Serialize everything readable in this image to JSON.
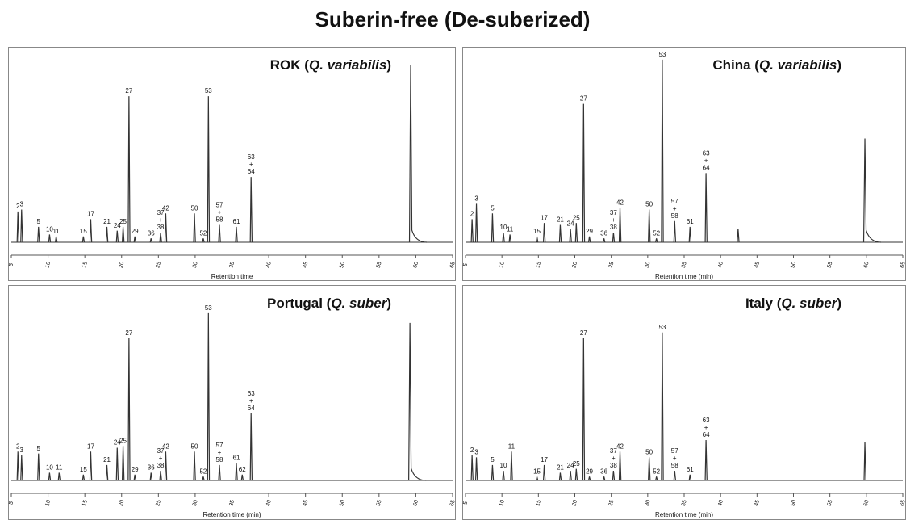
{
  "title": "Suberin-free (De-suberized)",
  "chart_data": [
    {
      "type": "line",
      "title": [
        "ROK  (",
        "Q. variabilis",
        ")"
      ],
      "title_italic": [
        false,
        true,
        false
      ],
      "x_label": "Retention time",
      "xlim": [
        5,
        65
      ],
      "xticks": [
        5,
        10,
        15,
        20,
        25,
        30,
        35,
        40,
        45,
        50,
        55,
        60,
        65
      ],
      "ylim": [
        0,
        100
      ],
      "color": "#333333",
      "x": [
        5.9,
        6.4,
        8.7,
        10.2,
        11.1,
        14.8,
        15.8,
        18.0,
        19.4,
        20.2,
        21.0,
        21.8,
        24.0,
        25.3,
        26.0,
        29.9,
        31.1,
        31.8,
        33.3,
        35.6,
        37.6,
        59.3
      ],
      "values": [
        16,
        17,
        8,
        4,
        3,
        3,
        12,
        8,
        6,
        8,
        76,
        3,
        2,
        5,
        15,
        15,
        2,
        76,
        9,
        8,
        34,
        92
      ],
      "labels": [
        [
          "2"
        ],
        [
          "3"
        ],
        [
          "5"
        ],
        [
          "10"
        ],
        [
          "11"
        ],
        [
          "15"
        ],
        [
          "17"
        ],
        [
          "21"
        ],
        [
          "24"
        ],
        [
          "25"
        ],
        [
          "27"
        ],
        [
          "29"
        ],
        [
          "36"
        ],
        [
          "37",
          "+",
          "38"
        ],
        [
          "42"
        ],
        [
          "50"
        ],
        [
          "52"
        ],
        [
          "53"
        ],
        [
          "57",
          "+",
          "58"
        ],
        [
          "61"
        ],
        [
          "63",
          "+",
          "64"
        ],
        null
      ]
    },
    {
      "type": "line",
      "title": [
        "China (",
        "Q. variabilis",
        ")"
      ],
      "title_italic": [
        false,
        true,
        false
      ],
      "x_label": "Retention time (min)",
      "xlim": [
        5,
        65
      ],
      "xticks": [
        5,
        10,
        15,
        20,
        25,
        30,
        35,
        40,
        45,
        50,
        55,
        60,
        65
      ],
      "ylim": [
        0,
        100
      ],
      "color": "#333333",
      "x": [
        5.9,
        6.5,
        8.7,
        10.2,
        11.1,
        14.8,
        15.8,
        18.0,
        19.4,
        20.2,
        21.2,
        22.0,
        24.0,
        25.3,
        26.2,
        30.2,
        31.2,
        32.0,
        33.7,
        35.8,
        38.0,
        42.4,
        59.8
      ],
      "values": [
        12,
        20,
        15,
        5,
        4,
        3,
        10,
        9,
        7,
        10,
        72,
        3,
        2,
        5,
        18,
        17,
        2,
        95,
        11,
        8,
        36,
        7,
        54
      ],
      "labels": [
        [
          "2"
        ],
        [
          "3"
        ],
        [
          "5"
        ],
        [
          "10"
        ],
        [
          "11"
        ],
        [
          "15"
        ],
        [
          "17"
        ],
        [
          "21"
        ],
        [
          "24"
        ],
        [
          "25"
        ],
        [
          "27"
        ],
        [
          "29"
        ],
        [
          "36"
        ],
        [
          "37",
          "+",
          "38"
        ],
        [
          "42"
        ],
        [
          "50"
        ],
        [
          "52"
        ],
        [
          "53"
        ],
        [
          "57",
          "+",
          "58"
        ],
        [
          "61"
        ],
        [
          "63",
          "+",
          "64"
        ],
        null,
        null
      ]
    },
    {
      "type": "line",
      "title": [
        "Portugal (",
        "Q. suber",
        ")"
      ],
      "title_italic": [
        false,
        true,
        false
      ],
      "x_label": "Retention time (min)",
      "xlim": [
        5,
        65
      ],
      "xticks": [
        5,
        10,
        15,
        20,
        25,
        30,
        35,
        40,
        45,
        50,
        55,
        60,
        65
      ],
      "ylim": [
        0,
        100
      ],
      "color": "#333333",
      "x": [
        5.9,
        6.4,
        8.7,
        10.2,
        11.5,
        14.8,
        15.8,
        18.0,
        19.4,
        20.2,
        21.0,
        21.8,
        24.0,
        25.3,
        26.0,
        29.9,
        31.1,
        31.8,
        33.3,
        35.6,
        36.4,
        37.6,
        59.2
      ],
      "values": [
        15,
        13,
        14,
        4,
        4,
        3,
        15,
        8,
        17,
        18,
        74,
        3,
        4,
        5,
        15,
        15,
        2,
        87,
        8,
        9,
        3,
        35,
        82
      ],
      "labels": [
        [
          "2"
        ],
        [
          "3"
        ],
        [
          "5"
        ],
        [
          "10"
        ],
        [
          "11"
        ],
        [
          "15"
        ],
        [
          "17"
        ],
        [
          "21"
        ],
        [
          "24"
        ],
        [
          "25"
        ],
        [
          "27"
        ],
        [
          "29"
        ],
        [
          "36"
        ],
        [
          "37",
          "+",
          "38"
        ],
        [
          "42"
        ],
        [
          "50"
        ],
        [
          "52"
        ],
        [
          "53"
        ],
        [
          "57",
          "+",
          "58"
        ],
        [
          "61"
        ],
        [
          "62"
        ],
        [
          "63",
          "+",
          "64"
        ],
        null
      ]
    },
    {
      "type": "line",
      "title": [
        "Italy (",
        "Q. suber",
        ")"
      ],
      "title_italic": [
        false,
        true,
        false
      ],
      "x_label": "Retention time (min)",
      "xlim": [
        5,
        65
      ],
      "xticks": [
        5,
        10,
        15,
        20,
        25,
        30,
        35,
        40,
        45,
        50,
        55,
        60,
        65
      ],
      "ylim": [
        0,
        100
      ],
      "color": "#333333",
      "x": [
        5.9,
        6.5,
        8.7,
        10.2,
        11.3,
        14.8,
        15.8,
        18.0,
        19.4,
        20.2,
        21.2,
        22.0,
        24.0,
        25.3,
        26.2,
        30.2,
        31.2,
        32.0,
        33.7,
        35.8,
        38.0,
        59.8
      ],
      "values": [
        13,
        12,
        8,
        5,
        15,
        2,
        8,
        4,
        5,
        6,
        74,
        2,
        2,
        5,
        15,
        12,
        2,
        77,
        5,
        3,
        21,
        20
      ],
      "labels": [
        [
          "2"
        ],
        [
          "3"
        ],
        [
          "5"
        ],
        [
          "10"
        ],
        [
          "11"
        ],
        [
          "15"
        ],
        [
          "17"
        ],
        [
          "21"
        ],
        [
          "24"
        ],
        [
          "25"
        ],
        [
          "27"
        ],
        [
          "29"
        ],
        [
          "36"
        ],
        [
          "37",
          "+",
          "38"
        ],
        [
          "42"
        ],
        [
          "50"
        ],
        [
          "52"
        ],
        [
          "53"
        ],
        [
          "57",
          "+",
          "58"
        ],
        [
          "61"
        ],
        [
          "63",
          "+",
          "64"
        ],
        null
      ]
    }
  ]
}
